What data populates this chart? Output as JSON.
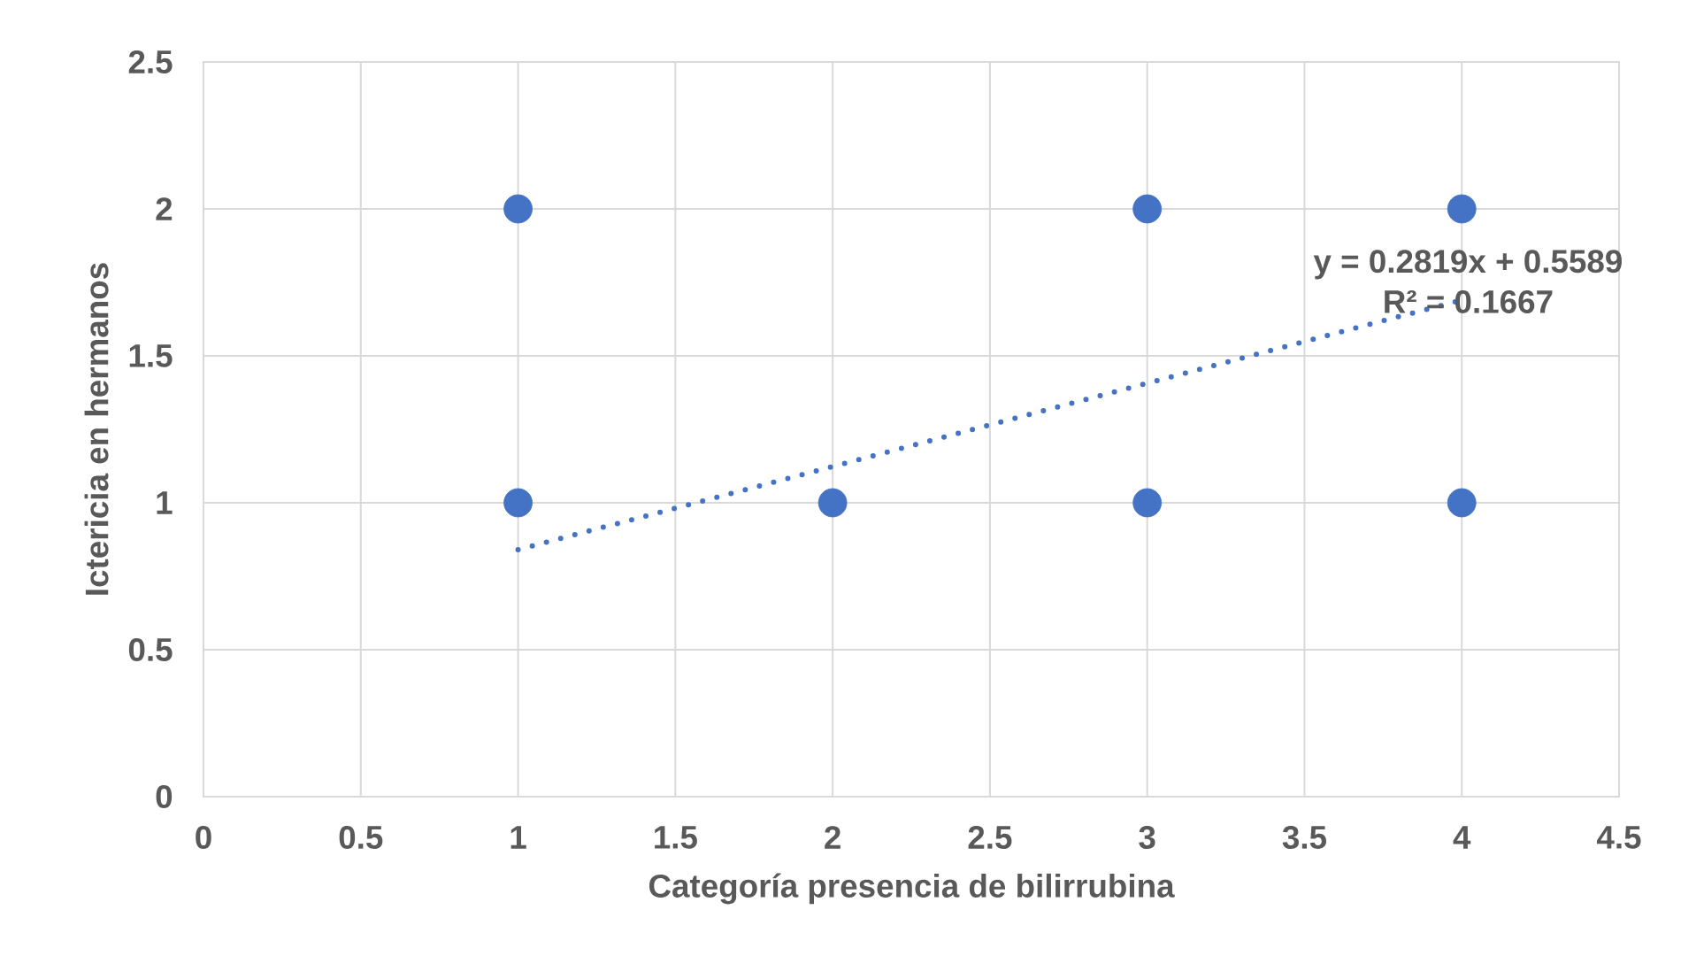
{
  "chart_data": {
    "type": "scatter",
    "xlabel": "Categoría presencia de bilirrubina",
    "ylabel": "Ictericia en hermanos",
    "xlim": [
      0,
      4.5
    ],
    "ylim": [
      0,
      2.5
    ],
    "xticks": [
      0,
      0.5,
      1,
      1.5,
      2,
      2.5,
      3,
      3.5,
      4,
      4.5
    ],
    "yticks": [
      0,
      0.5,
      1,
      1.5,
      2,
      2.5
    ],
    "grid": true,
    "marker": "circle",
    "series": [
      {
        "color": "#4472c4",
        "x": [
          1,
          1,
          2,
          3,
          3,
          4,
          4
        ],
        "values": [
          2,
          1,
          1,
          2,
          1,
          2,
          1
        ]
      },
      {
        "type": "line",
        "color": "#4472c4",
        "x": [
          1,
          4
        ],
        "values": [
          0.84,
          1.69
        ],
        "line_style": "dotted",
        "marker": "none"
      }
    ],
    "annotations": [
      "y = 0.2819x + 0.5589",
      "R² = 0.1667"
    ]
  }
}
